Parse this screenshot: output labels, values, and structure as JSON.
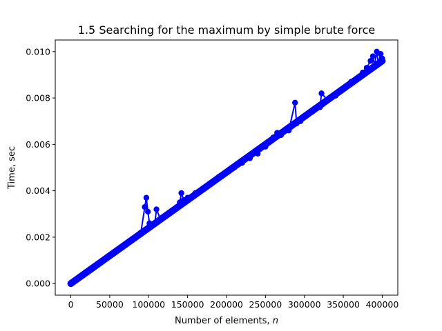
{
  "chart_data": {
    "type": "line",
    "title": "1.5 Searching for the maximum by simple brute force",
    "xlabel": "Number of elements, ",
    "xlabel_var": "n",
    "ylabel": "Time, sec",
    "xlim": [
      -20000,
      420000
    ],
    "ylim": [
      -0.0005,
      0.0105
    ],
    "x_ticks": [
      0,
      50000,
      100000,
      150000,
      200000,
      250000,
      300000,
      350000,
      400000
    ],
    "x_tick_labels": [
      "0",
      "50000",
      "100000",
      "150000",
      "200000",
      "250000",
      "300000",
      "350000",
      "400000"
    ],
    "y_ticks": [
      0.0,
      0.002,
      0.004,
      0.006,
      0.008,
      0.01
    ],
    "y_tick_labels": [
      "0.000",
      "0.002",
      "0.004",
      "0.006",
      "0.008",
      "0.010"
    ],
    "grid": false,
    "legend": "none",
    "series_color": "#0000ff",
    "marker": "circle",
    "trend": {
      "x_start": 0,
      "x_end": 400000,
      "slope_sec_per_element": 2.4e-08
    },
    "x": [
      0,
      10000,
      20000,
      30000,
      40000,
      50000,
      60000,
      70000,
      80000,
      90000,
      95000,
      97000,
      99000,
      101000,
      105000,
      108000,
      110000,
      115000,
      120000,
      130000,
      140000,
      142000,
      145000,
      150000,
      160000,
      170000,
      180000,
      190000,
      200000,
      210000,
      220000,
      230000,
      240000,
      250000,
      255000,
      260000,
      265000,
      270000,
      280000,
      288000,
      290000,
      295000,
      300000,
      310000,
      320000,
      322000,
      330000,
      340000,
      350000,
      360000,
      370000,
      375000,
      380000,
      385000,
      388000,
      390000,
      393000,
      395000,
      398000,
      400000
    ],
    "y": [
      0.0,
      0.00025,
      0.0005,
      0.00072,
      0.00095,
      0.0012,
      0.00142,
      0.00165,
      0.0019,
      0.0022,
      0.0033,
      0.0037,
      0.0031,
      0.0026,
      0.0025,
      0.0026,
      0.0032,
      0.0028,
      0.0029,
      0.0031,
      0.0035,
      0.0039,
      0.0036,
      0.0037,
      0.0039,
      0.0041,
      0.0043,
      0.0046,
      0.0048,
      0.005,
      0.0052,
      0.0054,
      0.0056,
      0.0059,
      0.0061,
      0.0063,
      0.0065,
      0.0064,
      0.0066,
      0.0078,
      0.0069,
      0.007,
      0.0072,
      0.0074,
      0.0076,
      0.0082,
      0.0079,
      0.0081,
      0.0084,
      0.0087,
      0.0089,
      0.0091,
      0.0093,
      0.0096,
      0.0098,
      0.0094,
      0.01,
      0.0095,
      0.0099,
      0.0097
    ]
  }
}
